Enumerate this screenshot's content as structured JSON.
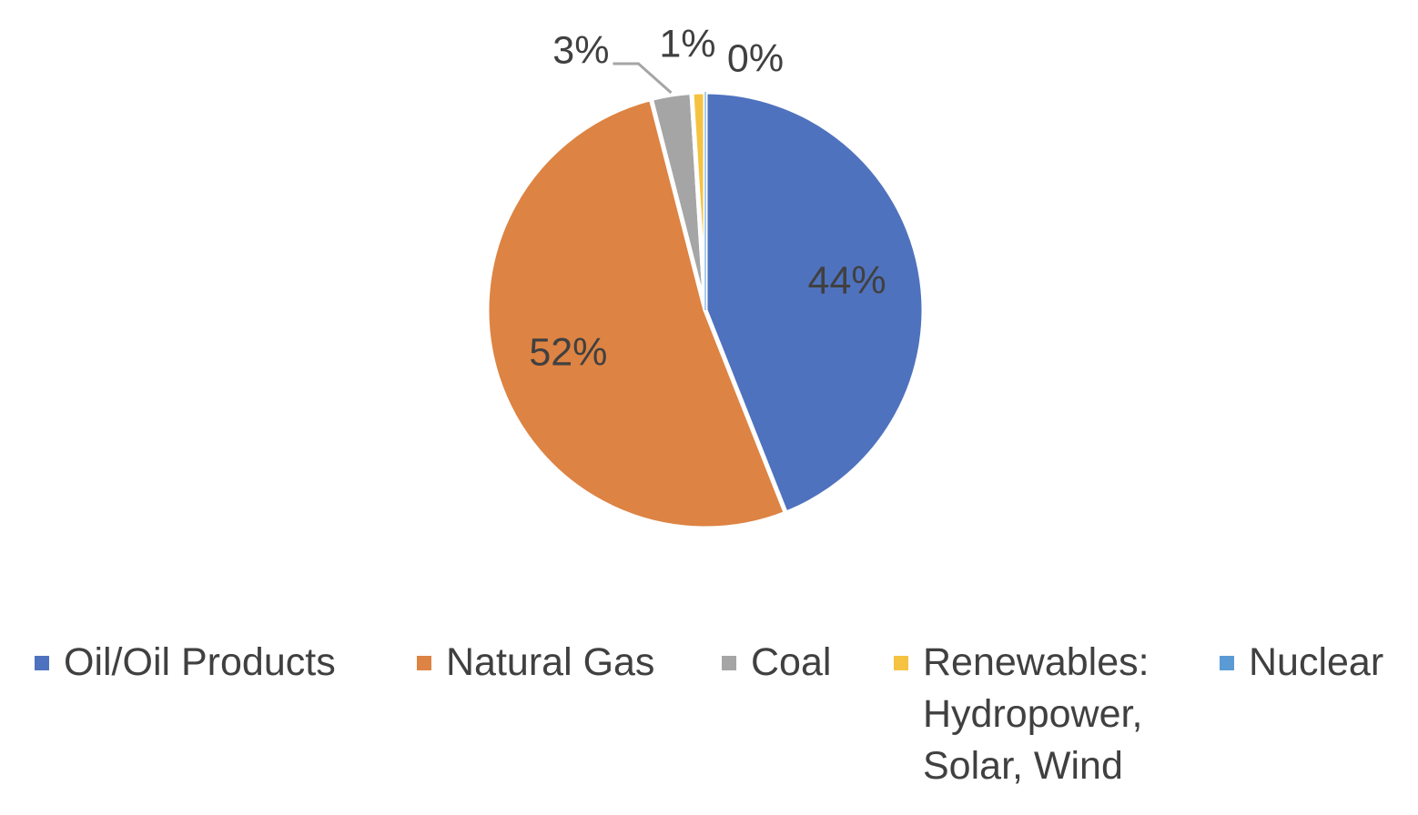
{
  "chart_data": {
    "type": "pie",
    "categories": [
      "Oil/Oil Products",
      "Natural Gas",
      "Coal",
      "Renewables:\nHydropower,\nSolar, Wind",
      "Nuclear"
    ],
    "values": [
      44,
      52,
      3,
      1,
      0
    ],
    "data_labels": [
      "44%",
      "52%",
      "3%",
      "1%",
      "0%"
    ],
    "colors": [
      "#4F72BE",
      "#DD8343",
      "#A5A5A5",
      "#F5C242",
      "#5B9BD5"
    ],
    "start_angle_deg": 0,
    "direction": "clockwise",
    "legend_position": "bottom"
  }
}
